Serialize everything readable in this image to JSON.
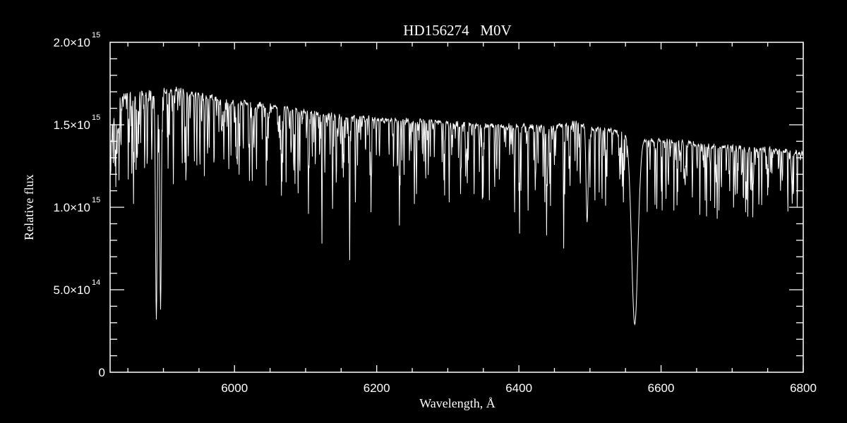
{
  "chart_data": {
    "type": "line",
    "title": "HD156274   M0V",
    "xlabel": "Wavelength, Å",
    "ylabel": "Relative flux",
    "xlim": [
      5825,
      6800
    ],
    "ylim": [
      0,
      2000000000000000.0
    ],
    "grid": false,
    "x_ticks": [
      {
        "value": 6000,
        "label": "6000"
      },
      {
        "value": 6200,
        "label": "6200"
      },
      {
        "value": 6400,
        "label": "6400"
      },
      {
        "value": 6600,
        "label": "6600"
      },
      {
        "value": 6800,
        "label": "6800"
      }
    ],
    "y_ticks": [
      {
        "value": 0,
        "mant": "0",
        "exp": ""
      },
      {
        "value": 500000000000000.0,
        "mant": "5.0×10",
        "exp": "14"
      },
      {
        "value": 1000000000000000.0,
        "mant": "1.0×10",
        "exp": "15"
      },
      {
        "value": 1500000000000000.0,
        "mant": "1.5×10",
        "exp": "15"
      },
      {
        "value": 2000000000000000.0,
        "mant": "2.0×10",
        "exp": "15"
      }
    ],
    "line_color": "#ffffff",
    "background": "#000000",
    "flux_unit": 1000000000000000.0,
    "continuum": [
      [
        5825,
        1.45
      ],
      [
        5832,
        1.6
      ],
      [
        5840,
        1.7
      ],
      [
        5880,
        1.71
      ],
      [
        5890,
        1.72
      ],
      [
        5920,
        1.73
      ],
      [
        5950,
        1.7
      ],
      [
        6000,
        1.66
      ],
      [
        6050,
        1.63
      ],
      [
        6100,
        1.6
      ],
      [
        6150,
        1.57
      ],
      [
        6200,
        1.55
      ],
      [
        6250,
        1.54
      ],
      [
        6300,
        1.53
      ],
      [
        6350,
        1.51
      ],
      [
        6400,
        1.51
      ],
      [
        6450,
        1.5
      ],
      [
        6480,
        1.53
      ],
      [
        6500,
        1.49
      ],
      [
        6520,
        1.49
      ],
      [
        6540,
        1.47
      ],
      [
        6552,
        1.45
      ],
      [
        6575,
        1.42
      ],
      [
        6600,
        1.42
      ],
      [
        6650,
        1.4
      ],
      [
        6700,
        1.38
      ],
      [
        6750,
        1.37
      ],
      [
        6800,
        1.34
      ]
    ],
    "absorption_lines": [
      {
        "wavelength": 5858,
        "min_flux": 1.02
      },
      {
        "wavelength": 5863,
        "min_flux": 1.3
      },
      {
        "wavelength": 5890,
        "min_flux": 0.32,
        "width": 1.2
      },
      {
        "wavelength": 5896,
        "min_flux": 0.38,
        "width": 1.1
      },
      {
        "wavelength": 5914,
        "min_flux": 1.14
      },
      {
        "wavelength": 5930,
        "min_flux": 1.27
      },
      {
        "wavelength": 5935,
        "min_flux": 1.31
      },
      {
        "wavelength": 5985,
        "min_flux": 1.29
      },
      {
        "wavelength": 6004,
        "min_flux": 1.26
      },
      {
        "wavelength": 6021,
        "min_flux": 1.16
      },
      {
        "wavelength": 6025,
        "min_flux": 1.16
      },
      {
        "wavelength": 6066,
        "min_flux": 1.07
      },
      {
        "wavelength": 6104,
        "min_flux": 0.96
      },
      {
        "wavelength": 6123,
        "min_flux": 0.78
      },
      {
        "wavelength": 6138,
        "min_flux": 0.99
      },
      {
        "wavelength": 6143,
        "min_flux": 1.15
      },
      {
        "wavelength": 6162,
        "min_flux": 0.68
      },
      {
        "wavelength": 6170,
        "min_flux": 1.03
      },
      {
        "wavelength": 6192,
        "min_flux": 0.97
      },
      {
        "wavelength": 6232,
        "min_flux": 0.89
      },
      {
        "wavelength": 6253,
        "min_flux": 1.02
      },
      {
        "wavelength": 6256,
        "min_flux": 1.08
      },
      {
        "wavelength": 6302,
        "min_flux": 1.03
      },
      {
        "wavelength": 6318,
        "min_flux": 1.08
      },
      {
        "wavelength": 6337,
        "min_flux": 1.08
      },
      {
        "wavelength": 6394,
        "min_flux": 0.97
      },
      {
        "wavelength": 6401,
        "min_flux": 0.84
      },
      {
        "wavelength": 6413,
        "min_flux": 0.98
      },
      {
        "wavelength": 6439,
        "min_flux": 0.83
      },
      {
        "wavelength": 6463,
        "min_flux": 0.75
      },
      {
        "wavelength": 6472,
        "min_flux": 1.13
      },
      {
        "wavelength": 6482,
        "min_flux": 1.22
      },
      {
        "wavelength": 6496,
        "min_flux": 0.91,
        "width": 1.5
      },
      {
        "wavelength": 6500,
        "min_flux": 1.12
      },
      {
        "wavelength": 6547,
        "min_flux": 1.03
      },
      {
        "wavelength": 6563,
        "min_flux": 0.29,
        "width": 4.5
      },
      {
        "wavelength": 6594,
        "min_flux": 0.99
      },
      {
        "wavelength": 6610,
        "min_flux": 1.17
      },
      {
        "wavelength": 6644,
        "min_flux": 1.06
      },
      {
        "wavelength": 6664,
        "min_flux": 1.07
      },
      {
        "wavelength": 6679,
        "min_flux": 0.93
      },
      {
        "wavelength": 6719,
        "min_flux": 0.97
      },
      {
        "wavelength": 6751,
        "min_flux": 1.12
      },
      {
        "wavelength": 6768,
        "min_flux": 1.1
      }
    ]
  }
}
